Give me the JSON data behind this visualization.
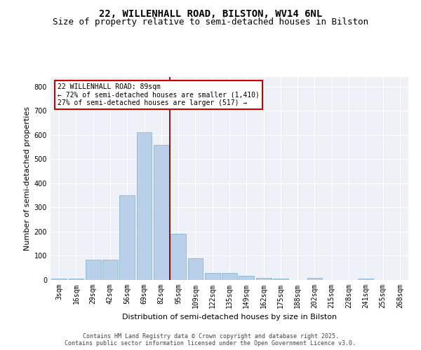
{
  "title1": "22, WILLENHALL ROAD, BILSTON, WV14 6NL",
  "title2": "Size of property relative to semi-detached houses in Bilston",
  "xlabel": "Distribution of semi-detached houses by size in Bilston",
  "ylabel": "Number of semi-detached properties",
  "categories": [
    "3sqm",
    "16sqm",
    "29sqm",
    "42sqm",
    "56sqm",
    "69sqm",
    "82sqm",
    "95sqm",
    "109sqm",
    "122sqm",
    "135sqm",
    "149sqm",
    "162sqm",
    "175sqm",
    "188sqm",
    "202sqm",
    "215sqm",
    "228sqm",
    "241sqm",
    "255sqm",
    "268sqm"
  ],
  "values": [
    5,
    5,
    85,
    85,
    350,
    610,
    560,
    190,
    90,
    28,
    28,
    18,
    10,
    5,
    0,
    8,
    0,
    0,
    5,
    0,
    0
  ],
  "bar_color": "#b8d0e8",
  "bar_edge_color": "#8ab4d4",
  "vline_color": "#8b0000",
  "vline_x": 7.0,
  "annotation_title": "22 WILLENHALL ROAD: 89sqm",
  "annotation_line2": "← 72% of semi-detached houses are smaller (1,410)",
  "annotation_line3": "27% of semi-detached houses are larger (517) →",
  "annotation_box_color": "#ffffff",
  "annotation_box_edge": "#cc0000",
  "ylim": [
    0,
    840
  ],
  "yticks": [
    0,
    100,
    200,
    300,
    400,
    500,
    600,
    700,
    800
  ],
  "background_color": "#eef2f8",
  "footer1": "Contains HM Land Registry data © Crown copyright and database right 2025.",
  "footer2": "Contains public sector information licensed under the Open Government Licence v3.0.",
  "title_fontsize": 10,
  "subtitle_fontsize": 9,
  "axis_label_fontsize": 8,
  "tick_fontsize": 7,
  "annot_fontsize": 7,
  "footer_fontsize": 6
}
